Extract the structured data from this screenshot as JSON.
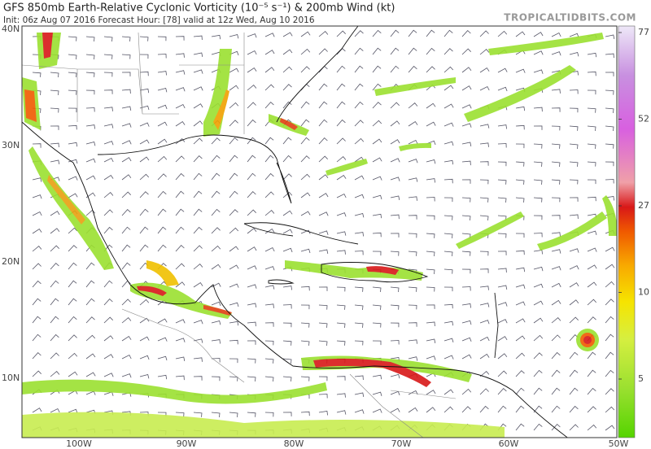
{
  "header": {
    "title": "GFS 850mb Earth-Relative Cyclonic Vorticity (10⁻⁵ s⁻¹) & 200mb Wind (kt)",
    "subtitle": "Init: 06z Aug 07 2016   Forecast Hour: [78]   valid at 12z Wed, Aug 10 2016",
    "site": "TROPICALTIDBITS.COM"
  },
  "map": {
    "latitude_labels": [
      "40N",
      "30N",
      "20N",
      "10N"
    ],
    "longitude_labels": [
      "100W",
      "90W",
      "80W",
      "70W",
      "60W",
      "50W"
    ]
  },
  "colorbar": {
    "ticks": [
      5,
      10,
      27,
      52,
      77
    ]
  }
}
